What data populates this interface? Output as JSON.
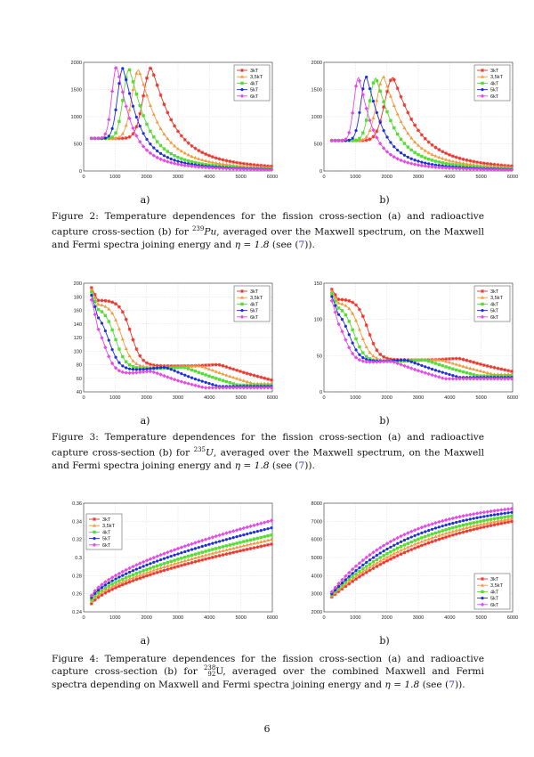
{
  "colors": {
    "3kT": "#e8352c",
    "3.5kT": "#f39a3c",
    "4kT": "#57dc35",
    "5kT": "#1f2fd8",
    "6kT": "#e64ae6"
  },
  "legend_labels": [
    "3kT",
    "3,5kT",
    "4kT",
    "5kT",
    "6kT"
  ],
  "figures": [
    {
      "id": "fig2",
      "number": "Figure 2:",
      "caption_pre": "Temperature dependences for the fission cross-section (a) and radioactive capture cross-section (b) for ",
      "nuclide_mass": "239",
      "nuclide": "Pu",
      "caption_mid": ", averaged over the Maxwell spectrum, on the Maxwell and Fermi spectra joining energy and ",
      "eta": "η = 1.8",
      "see": " (see (",
      "ref": "7",
      "end": ")).",
      "sub_a": "a)",
      "sub_b": "b)"
    },
    {
      "id": "fig3",
      "number": "Figure 3:",
      "caption_pre": "Temperature dependences for the fission cross-section (a) and radioactive capture cross-section (b) for ",
      "nuclide_mass": "235",
      "nuclide": "U",
      "caption_mid": ", averaged over the Maxwell spectrum, on the Maxwell and Fermi spectra joining energy and ",
      "eta": "η = 1.8",
      "see": " (see (",
      "ref": "7",
      "end": ")).",
      "sub_a": "a)",
      "sub_b": "b)"
    },
    {
      "id": "fig4",
      "number": "Figure 4:",
      "caption_pre": "Temperature dependences for the fission cross-section (a) and radioactive capture cross-section (b) for ",
      "nuclide_mass": "238",
      "nuclide_z": "92",
      "nuclide": "U",
      "caption_mid": ", averaged over the combined Maxwell and Fermi spectra depending on Maxwell and Fermi spectra joining energy and ",
      "eta": "η = 1.8",
      "see": " (see (",
      "ref": "7",
      "end": ")).",
      "sub_a": "a)",
      "sub_b": "b)"
    }
  ],
  "page_number": "6",
  "chart_data": [
    {
      "id": "f2a",
      "type": "line",
      "xlim": [
        0,
        6000
      ],
      "ylim": [
        0,
        2000
      ],
      "xticks": [
        "0",
        "1000",
        "2000",
        "3000",
        "4000",
        "5000",
        "6000"
      ],
      "yticks": [
        "0",
        "500",
        "1000",
        "1500",
        "2000"
      ],
      "legend": "top-right",
      "series": [
        {
          "name": "3kT",
          "params": {
            "kind": "peak",
            "base": 600,
            "peak": 1900,
            "xp": 2150,
            "w": 520,
            "tail": 0.48
          }
        },
        {
          "name": "3.5kT",
          "params": {
            "kind": "peak",
            "base": 600,
            "peak": 1860,
            "xp": 1750,
            "w": 460,
            "tail": 0.45
          }
        },
        {
          "name": "4kT",
          "params": {
            "kind": "peak",
            "base": 600,
            "peak": 1880,
            "xp": 1450,
            "w": 400,
            "tail": 0.42
          }
        },
        {
          "name": "5kT",
          "params": {
            "kind": "peak",
            "base": 600,
            "peak": 1890,
            "xp": 1250,
            "w": 360,
            "tail": 0.4
          }
        },
        {
          "name": "6kT",
          "params": {
            "kind": "peak",
            "base": 600,
            "peak": 1920,
            "xp": 1050,
            "w": 320,
            "tail": 0.38
          }
        }
      ]
    },
    {
      "id": "f2b",
      "type": "line",
      "xlim": [
        0,
        6000
      ],
      "ylim": [
        0,
        2000
      ],
      "xticks": [
        "0",
        "1000",
        "2000",
        "3000",
        "4000",
        "5000",
        "6000"
      ],
      "yticks": [
        "0",
        "500",
        "1000",
        "1500",
        "2000"
      ],
      "legend": "top-right",
      "series": [
        {
          "name": "3kT",
          "params": {
            "kind": "peak",
            "base": 560,
            "peak": 1720,
            "xp": 2200,
            "w": 560,
            "tail": 0.48
          }
        },
        {
          "name": "3.5kT",
          "params": {
            "kind": "peak",
            "base": 560,
            "peak": 1730,
            "xp": 1900,
            "w": 480,
            "tail": 0.45
          }
        },
        {
          "name": "4kT",
          "params": {
            "kind": "peak",
            "base": 560,
            "peak": 1710,
            "xp": 1650,
            "w": 420,
            "tail": 0.42
          }
        },
        {
          "name": "5kT",
          "params": {
            "kind": "peak",
            "base": 560,
            "peak": 1730,
            "xp": 1350,
            "w": 360,
            "tail": 0.4
          }
        },
        {
          "name": "6kT",
          "params": {
            "kind": "peak",
            "base": 560,
            "peak": 1720,
            "xp": 1100,
            "w": 310,
            "tail": 0.38
          }
        }
      ]
    },
    {
      "id": "f3a",
      "type": "line",
      "xlim": [
        0,
        6000
      ],
      "ylim": [
        40,
        200
      ],
      "xticks": [
        "0",
        "1000",
        "2000",
        "3000",
        "4000",
        "5000",
        "6000"
      ],
      "yticks": [
        "40",
        "60",
        "80",
        "100",
        "120",
        "140",
        "160",
        "180",
        "200"
      ],
      "legend": "top-right",
      "series": [
        {
          "name": "3kT",
          "params": {
            "kind": "decay",
            "start": 198,
            "plateau": 175,
            "drop": 1500,
            "mid": 78,
            "bump": 4300,
            "bumpH": 80,
            "end": 57
          }
        },
        {
          "name": "3.5kT",
          "params": {
            "kind": "decay",
            "start": 196,
            "plateau": 170,
            "drop": 1200,
            "mid": 76,
            "bump": 3700,
            "bumpH": 78,
            "end": 52
          }
        },
        {
          "name": "4kT",
          "params": {
            "kind": "decay",
            "start": 194,
            "plateau": 165,
            "drop": 1000,
            "mid": 74,
            "bump": 3200,
            "bumpH": 76,
            "end": 50
          }
        },
        {
          "name": "5kT",
          "params": {
            "kind": "decay",
            "start": 192,
            "plateau": 160,
            "drop": 800,
            "mid": 72,
            "bump": 2600,
            "bumpH": 76,
            "end": 48
          }
        },
        {
          "name": "6kT",
          "params": {
            "kind": "decay",
            "start": 190,
            "plateau": 155,
            "drop": 650,
            "mid": 66,
            "bump": 2150,
            "bumpH": 70,
            "end": 46
          }
        }
      ]
    },
    {
      "id": "f3b",
      "type": "line",
      "xlim": [
        0,
        6000
      ],
      "ylim": [
        0,
        150
      ],
      "xticks": [
        "0",
        "1000",
        "2000",
        "3000",
        "4000",
        "5000",
        "6000"
      ],
      "yticks": [
        "0",
        "50",
        "100",
        "150"
      ],
      "legend": "top-right",
      "series": [
        {
          "name": "3kT",
          "params": {
            "kind": "decay",
            "start": 145,
            "plateau": 128,
            "drop": 1400,
            "mid": 44,
            "bump": 4300,
            "bumpH": 46,
            "end": 28
          }
        },
        {
          "name": "3.5kT",
          "params": {
            "kind": "decay",
            "start": 143,
            "plateau": 124,
            "drop": 1150,
            "mid": 43,
            "bump": 3700,
            "bumpH": 44,
            "end": 24
          }
        },
        {
          "name": "4kT",
          "params": {
            "kind": "decay",
            "start": 141,
            "plateau": 120,
            "drop": 950,
            "mid": 42,
            "bump": 3200,
            "bumpH": 44,
            "end": 22
          }
        },
        {
          "name": "5kT",
          "params": {
            "kind": "decay",
            "start": 139,
            "plateau": 116,
            "drop": 800,
            "mid": 42,
            "bump": 2600,
            "bumpH": 44,
            "end": 20
          }
        },
        {
          "name": "6kT",
          "params": {
            "kind": "decay",
            "start": 137,
            "plateau": 112,
            "drop": 650,
            "mid": 40,
            "bump": 2150,
            "bumpH": 42,
            "end": 18
          }
        }
      ]
    },
    {
      "id": "f4a",
      "type": "line",
      "xlim": [
        0,
        6000
      ],
      "ylim": [
        0.24,
        0.36
      ],
      "xticks": [
        "0",
        "1000",
        "2000",
        "3000",
        "4000",
        "5000",
        "6000"
      ],
      "yticks": [
        "0.24",
        "0.26",
        "0.28",
        "0.3",
        "0.32",
        "0.34",
        "0.36"
      ],
      "legend": "top-left",
      "series": [
        {
          "name": "3kT",
          "params": {
            "kind": "rise",
            "y0": 0.245,
            "y1": 0.315
          }
        },
        {
          "name": "3.5kT",
          "params": {
            "kind": "rise",
            "y0": 0.247,
            "y1": 0.32
          }
        },
        {
          "name": "4kT",
          "params": {
            "kind": "rise",
            "y0": 0.249,
            "y1": 0.325
          }
        },
        {
          "name": "5kT",
          "params": {
            "kind": "rise",
            "y0": 0.251,
            "y1": 0.333
          }
        },
        {
          "name": "6kT",
          "params": {
            "kind": "rise",
            "y0": 0.253,
            "y1": 0.341
          }
        }
      ]
    },
    {
      "id": "f4b",
      "type": "line",
      "xlim": [
        0,
        6000
      ],
      "ylim": [
        2000,
        8000
      ],
      "xticks": [
        "0",
        "1000",
        "2000",
        "3000",
        "4000",
        "5000",
        "6000"
      ],
      "yticks": [
        "2000",
        "3000",
        "4000",
        "5000",
        "6000",
        "7000",
        "8000"
      ],
      "legend": "bottom-right",
      "series": [
        {
          "name": "3kT",
          "params": {
            "kind": "sat",
            "y0": 2750,
            "y1": 7000,
            "k": 1.55
          }
        },
        {
          "name": "3.5kT",
          "params": {
            "kind": "sat",
            "y0": 2800,
            "y1": 7150,
            "k": 1.75
          }
        },
        {
          "name": "4kT",
          "params": {
            "kind": "sat",
            "y0": 2850,
            "y1": 7300,
            "k": 1.95
          }
        },
        {
          "name": "5kT",
          "params": {
            "kind": "sat",
            "y0": 2900,
            "y1": 7500,
            "k": 2.2
          }
        },
        {
          "name": "6kT",
          "params": {
            "kind": "sat",
            "y0": 3000,
            "y1": 7700,
            "k": 2.5
          }
        }
      ]
    }
  ]
}
